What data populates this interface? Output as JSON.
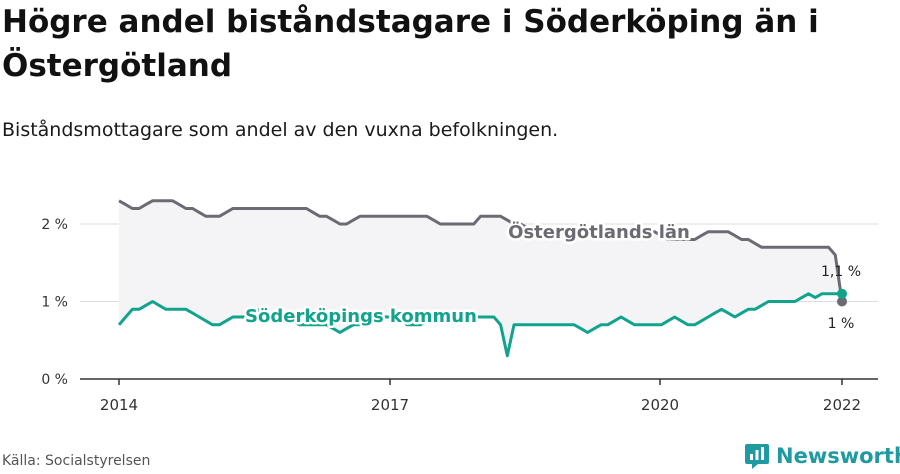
{
  "header": {
    "title": "Högre andel biståndstagare i Söderköping än i Östergötland",
    "subtitle": "Biståndsmottagare som andel av den vuxna befolkningen."
  },
  "footer": {
    "source": "Källa: Socialstyrelsen",
    "brand": "Newsworthy",
    "brand_icon": "newsworthy-logo-icon",
    "brand_color": "#1f9aa0"
  },
  "chart_data": {
    "type": "line",
    "xlim": [
      2014,
      2022.3
    ],
    "ylim": [
      0,
      2.5
    ],
    "x_ticks": [
      {
        "value": 2014,
        "label": "2014"
      },
      {
        "value": 2017,
        "label": "2017"
      },
      {
        "value": 2020,
        "label": "2020"
      },
      {
        "value": 2022,
        "label": "2022"
      }
    ],
    "y_ticks": [
      {
        "value": 0,
        "label": "0 %"
      },
      {
        "value": 1,
        "label": "1 %"
      },
      {
        "value": 2,
        "label": "2 %"
      }
    ],
    "grid": true,
    "series": [
      {
        "name": "Östergötlands län",
        "color": "#6b6b73",
        "end_label": "1 %",
        "points": [
          [
            2014.0,
            2.3
          ],
          [
            2014.08,
            2.25
          ],
          [
            2014.17,
            2.2
          ],
          [
            2014.25,
            2.2
          ],
          [
            2014.33,
            2.25
          ],
          [
            2014.42,
            2.3
          ],
          [
            2014.5,
            2.3
          ],
          [
            2014.58,
            2.3
          ],
          [
            2014.67,
            2.3
          ],
          [
            2014.75,
            2.25
          ],
          [
            2014.83,
            2.2
          ],
          [
            2014.92,
            2.2
          ],
          [
            2015.0,
            2.15
          ],
          [
            2015.08,
            2.1
          ],
          [
            2015.17,
            2.1
          ],
          [
            2015.25,
            2.1
          ],
          [
            2015.33,
            2.15
          ],
          [
            2015.42,
            2.2
          ],
          [
            2015.5,
            2.2
          ],
          [
            2015.58,
            2.2
          ],
          [
            2015.67,
            2.2
          ],
          [
            2015.75,
            2.2
          ],
          [
            2015.83,
            2.2
          ],
          [
            2015.92,
            2.2
          ],
          [
            2016.0,
            2.2
          ],
          [
            2016.08,
            2.2
          ],
          [
            2016.17,
            2.2
          ],
          [
            2016.25,
            2.2
          ],
          [
            2016.33,
            2.2
          ],
          [
            2016.42,
            2.15
          ],
          [
            2016.5,
            2.1
          ],
          [
            2016.58,
            2.1
          ],
          [
            2016.67,
            2.05
          ],
          [
            2016.75,
            2.0
          ],
          [
            2016.83,
            2.0
          ],
          [
            2016.92,
            2.05
          ],
          [
            2017.0,
            2.1
          ],
          [
            2017.08,
            2.1
          ],
          [
            2017.17,
            2.1
          ],
          [
            2017.25,
            2.1
          ],
          [
            2017.33,
            2.1
          ],
          [
            2017.42,
            2.1
          ],
          [
            2017.5,
            2.1
          ],
          [
            2017.58,
            2.1
          ],
          [
            2017.67,
            2.1
          ],
          [
            2017.75,
            2.1
          ],
          [
            2017.83,
            2.1
          ],
          [
            2017.92,
            2.05
          ],
          [
            2018.0,
            2.0
          ],
          [
            2018.08,
            2.0
          ],
          [
            2018.17,
            2.0
          ],
          [
            2018.25,
            2.0
          ],
          [
            2018.33,
            2.0
          ],
          [
            2018.42,
            2.0
          ],
          [
            2018.5,
            2.1
          ],
          [
            2018.58,
            2.1
          ],
          [
            2018.67,
            2.1
          ],
          [
            2018.75,
            2.1
          ],
          [
            2018.83,
            2.05
          ],
          [
            2018.92,
            2.0
          ],
          [
            2019.0,
            2.0
          ],
          [
            2019.08,
            1.95
          ],
          [
            2019.17,
            1.9
          ],
          [
            2019.25,
            1.9
          ],
          [
            2019.33,
            1.9
          ],
          [
            2019.42,
            1.9
          ],
          [
            2019.5,
            1.9
          ],
          [
            2019.58,
            1.9
          ],
          [
            2019.67,
            1.9
          ],
          [
            2019.75,
            1.9
          ],
          [
            2019.83,
            1.95
          ],
          [
            2019.92,
            1.9
          ],
          [
            2020.0,
            1.9
          ],
          [
            2020.08,
            1.9
          ],
          [
            2020.17,
            1.9
          ],
          [
            2020.25,
            1.9
          ],
          [
            2020.33,
            1.9
          ],
          [
            2020.42,
            1.9
          ],
          [
            2020.5,
            1.9
          ],
          [
            2020.58,
            1.9
          ],
          [
            2020.67,
            1.9
          ],
          [
            2020.75,
            1.85
          ],
          [
            2020.83,
            1.8
          ],
          [
            2020.92,
            1.8
          ],
          [
            2021.0,
            1.8
          ],
          [
            2021.08,
            1.8
          ],
          [
            2021.17,
            1.8
          ],
          [
            2021.25,
            1.85
          ],
          [
            2021.33,
            1.9
          ],
          [
            2021.42,
            1.9
          ],
          [
            2021.5,
            1.9
          ],
          [
            2021.58,
            1.9
          ],
          [
            2021.67,
            1.85
          ],
          [
            2021.75,
            1.8
          ],
          [
            2021.83,
            1.8
          ],
          [
            2021.92,
            1.75
          ],
          [
            2022.0,
            1.7
          ],
          [
            2022.08,
            1.7
          ],
          [
            2022.17,
            1.7
          ],
          [
            2022.25,
            1.7
          ],
          [
            2022.33,
            1.7
          ],
          [
            2022.42,
            1.7
          ],
          [
            2022.5,
            1.7
          ],
          [
            2022.58,
            1.7
          ],
          [
            2022.67,
            1.7
          ],
          [
            2022.75,
            1.7
          ],
          [
            2022.83,
            1.7
          ],
          [
            2022.92,
            1.6
          ],
          [
            2023.0,
            1.0
          ]
        ]
      },
      {
        "name": "Söderköpings kommun",
        "color": "#12a38d",
        "end_label": "1,1 %",
        "points": [
          [
            2014.0,
            0.7
          ],
          [
            2014.08,
            0.8
          ],
          [
            2014.17,
            0.9
          ],
          [
            2014.25,
            0.9
          ],
          [
            2014.33,
            0.95
          ],
          [
            2014.42,
            1.0
          ],
          [
            2014.5,
            0.95
          ],
          [
            2014.58,
            0.9
          ],
          [
            2014.67,
            0.9
          ],
          [
            2014.75,
            0.9
          ],
          [
            2014.83,
            0.9
          ],
          [
            2014.92,
            0.85
          ],
          [
            2015.0,
            0.8
          ],
          [
            2015.08,
            0.75
          ],
          [
            2015.17,
            0.7
          ],
          [
            2015.25,
            0.7
          ],
          [
            2015.33,
            0.75
          ],
          [
            2015.42,
            0.8
          ],
          [
            2015.5,
            0.8
          ],
          [
            2015.58,
            0.8
          ],
          [
            2015.67,
            0.85
          ],
          [
            2015.75,
            0.9
          ],
          [
            2015.83,
            0.85
          ],
          [
            2015.92,
            0.8
          ],
          [
            2016.0,
            0.8
          ],
          [
            2016.08,
            0.8
          ],
          [
            2016.17,
            0.75
          ],
          [
            2016.25,
            0.7
          ],
          [
            2016.33,
            0.7
          ],
          [
            2016.42,
            0.7
          ],
          [
            2016.5,
            0.7
          ],
          [
            2016.58,
            0.7
          ],
          [
            2016.67,
            0.65
          ],
          [
            2016.75,
            0.6
          ],
          [
            2016.83,
            0.65
          ],
          [
            2016.92,
            0.7
          ],
          [
            2017.0,
            0.7
          ],
          [
            2017.08,
            0.7
          ],
          [
            2017.17,
            0.75
          ],
          [
            2017.25,
            0.8
          ],
          [
            2017.33,
            0.8
          ],
          [
            2017.42,
            0.8
          ],
          [
            2017.5,
            0.8
          ],
          [
            2017.58,
            0.7
          ],
          [
            2017.67,
            0.7
          ],
          [
            2017.75,
            0.7
          ],
          [
            2017.83,
            0.75
          ],
          [
            2017.92,
            0.8
          ],
          [
            2018.0,
            0.8
          ],
          [
            2018.08,
            0.8
          ],
          [
            2018.17,
            0.8
          ],
          [
            2018.25,
            0.8
          ],
          [
            2018.33,
            0.8
          ],
          [
            2018.42,
            0.8
          ],
          [
            2018.5,
            0.8
          ],
          [
            2018.58,
            0.8
          ],
          [
            2018.67,
            0.8
          ],
          [
            2018.75,
            0.7
          ],
          [
            2018.83,
            0.3
          ],
          [
            2018.92,
            0.7
          ],
          [
            2019.0,
            0.7
          ],
          [
            2019.08,
            0.7
          ],
          [
            2019.17,
            0.7
          ],
          [
            2019.25,
            0.7
          ],
          [
            2019.33,
            0.7
          ],
          [
            2019.42,
            0.7
          ],
          [
            2019.5,
            0.7
          ],
          [
            2019.58,
            0.7
          ],
          [
            2019.67,
            0.7
          ],
          [
            2019.75,
            0.65
          ],
          [
            2019.83,
            0.6
          ],
          [
            2019.92,
            0.65
          ],
          [
            2020.0,
            0.7
          ],
          [
            2020.08,
            0.7
          ],
          [
            2020.17,
            0.75
          ],
          [
            2020.25,
            0.8
          ],
          [
            2020.33,
            0.75
          ],
          [
            2020.42,
            0.7
          ],
          [
            2020.5,
            0.7
          ],
          [
            2020.58,
            0.7
          ],
          [
            2020.67,
            0.7
          ],
          [
            2020.75,
            0.7
          ],
          [
            2020.83,
            0.75
          ],
          [
            2020.92,
            0.8
          ],
          [
            2021.0,
            0.75
          ],
          [
            2021.08,
            0.7
          ],
          [
            2021.17,
            0.7
          ],
          [
            2021.25,
            0.75
          ],
          [
            2021.33,
            0.8
          ],
          [
            2021.42,
            0.85
          ],
          [
            2021.5,
            0.9
          ],
          [
            2021.58,
            0.85
          ],
          [
            2021.67,
            0.8
          ],
          [
            2021.75,
            0.85
          ],
          [
            2021.83,
            0.9
          ],
          [
            2021.92,
            0.9
          ],
          [
            2022.0,
            0.95
          ],
          [
            2022.08,
            1.0
          ],
          [
            2022.17,
            1.0
          ],
          [
            2022.25,
            1.0
          ],
          [
            2022.33,
            1.0
          ],
          [
            2022.42,
            1.0
          ],
          [
            2022.5,
            1.05
          ],
          [
            2022.58,
            1.1
          ],
          [
            2022.67,
            1.05
          ],
          [
            2022.75,
            1.1
          ],
          [
            2022.83,
            1.1
          ],
          [
            2022.92,
            1.1
          ],
          [
            2023.0,
            1.1
          ]
        ]
      }
    ]
  }
}
